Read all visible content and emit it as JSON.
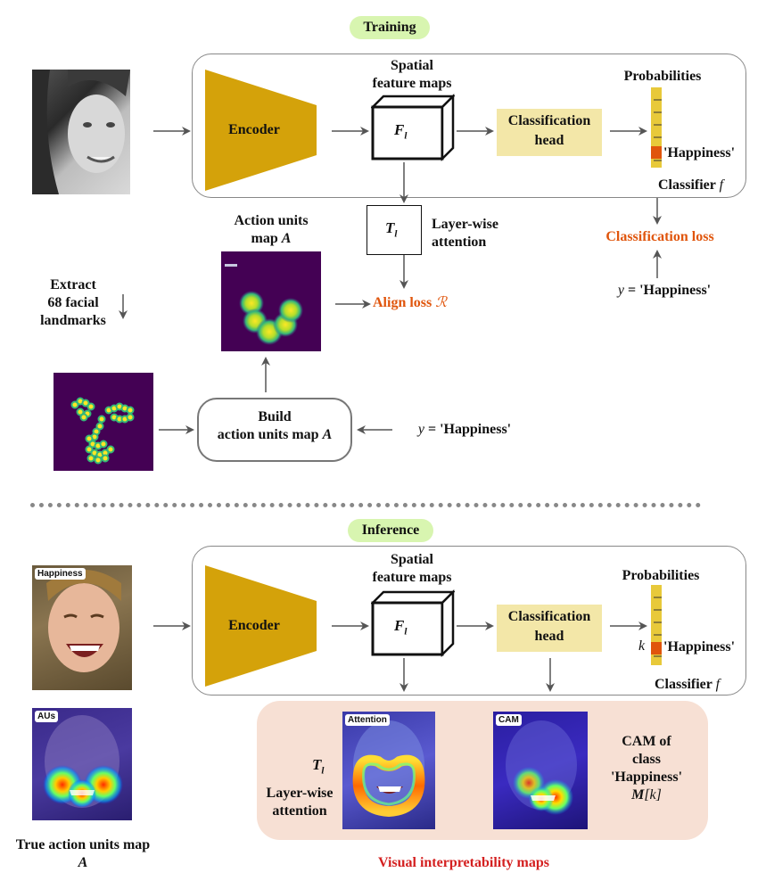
{
  "training": {
    "badge": "Training",
    "spatial_feature_maps": [
      "Spatial",
      "feature maps"
    ],
    "encoder": "Encoder",
    "feature_symbol": "F",
    "feature_sub": "l",
    "classification_head": [
      "Classification",
      "head"
    ],
    "probabilities": "Probabilities",
    "happiness_label": "'Happiness'",
    "classifier": "Classifier",
    "classifier_sym": "f",
    "attention_symbol": "T",
    "attention_sub": "l",
    "layer_wise_attention": [
      "Layer-wise",
      "attention"
    ],
    "classification_loss": "Classification loss",
    "y_sym": "y",
    "y_value": "= 'Happiness'",
    "au_map_title": [
      "Action units",
      "map"
    ],
    "au_map_sym": "A",
    "align_loss": "Align loss",
    "align_loss_sym": "ℛ",
    "extract_landmarks": [
      "Extract",
      "68 facial",
      "landmarks"
    ],
    "build_au": [
      "Build",
      "action units map"
    ],
    "build_au_sym": "A",
    "y2_sym": "y",
    "y2_value": "= 'Happiness'"
  },
  "inference": {
    "badge": "Inference",
    "spatial_feature_maps": [
      "Spatial",
      "feature maps"
    ],
    "encoder": "Encoder",
    "feature_symbol": "F",
    "feature_sub": "l",
    "classification_head": [
      "Classification",
      "head"
    ],
    "probabilities": "Probabilities",
    "k_sym": "k",
    "happiness_label": "'Happiness'",
    "classifier": "Classifier",
    "classifier_sym": "f",
    "input_tag": "Happiness",
    "aus_tag": "AUs",
    "attention_tag": "Attention",
    "cam_tag": "CAM",
    "attention_symbol": "T",
    "attention_sub": "l",
    "layer_wise_attention": [
      "Layer-wise",
      "attention"
    ],
    "cam_text": [
      "CAM of",
      "class",
      "'Happiness'"
    ],
    "cam_sym": "M",
    "cam_idx": "[k]",
    "true_au": [
      "True action units map"
    ],
    "true_au_sym": "A",
    "visual_maps": "Visual interpretability maps"
  },
  "colors": {
    "encoder": "#d4a20a",
    "badge": "#d8f5b0",
    "cls_head": "#f3e7a8",
    "loss": "#e0550c",
    "visual_title": "#d42020",
    "prob_bar": "#e8c93a",
    "prob_active": "#e0550c",
    "heat_bg": "#440154",
    "panel_bg": "#f7e0d4"
  }
}
